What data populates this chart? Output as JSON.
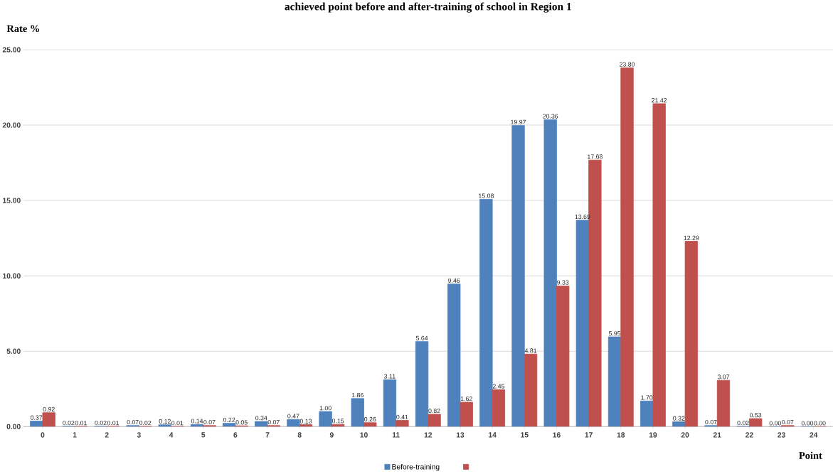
{
  "chart_data": {
    "type": "bar",
    "title": "achieved point before and after-training of school in Region 1",
    "xlabel": "Point",
    "ylabel": "Rate %",
    "categories": [
      "0",
      "1",
      "2",
      "3",
      "4",
      "5",
      "6",
      "7",
      "8",
      "9",
      "10",
      "11",
      "12",
      "13",
      "14",
      "15",
      "16",
      "17",
      "18",
      "19",
      "20",
      "21",
      "22",
      "23",
      "24"
    ],
    "series": [
      {
        "name": "Before-training",
        "color": "#4f81bd",
        "values": [
          0.37,
          0.02,
          0.02,
          0.07,
          0.12,
          0.14,
          0.22,
          0.34,
          0.47,
          1.0,
          1.86,
          3.11,
          5.64,
          9.46,
          15.08,
          19.97,
          20.36,
          13.69,
          5.95,
          1.7,
          0.32,
          0.07,
          0.02,
          0.0,
          0.0
        ],
        "value_labels": [
          "0.37",
          "0.02",
          "0.02",
          "0.07",
          "0.12",
          "0.14",
          "0.22",
          "0.34",
          "0.47",
          "1.00",
          "1.86",
          "3.11",
          "5.64",
          "9.46",
          "15.08",
          "19.97",
          "20.36",
          "13.69",
          "5.95",
          "1.70",
          "0.32",
          "0.07",
          "0.02",
          "0.00",
          "0.00"
        ]
      },
      {
        "color": "#c0504d",
        "values": [
          0.92,
          0.01,
          0.01,
          0.02,
          0.01,
          0.07,
          0.05,
          0.07,
          0.13,
          0.15,
          0.26,
          0.41,
          0.82,
          1.62,
          2.45,
          4.81,
          9.33,
          17.68,
          23.8,
          21.42,
          12.29,
          3.07,
          0.53,
          0.07,
          0.0
        ],
        "value_labels": [
          "0.92",
          "0.01",
          "0.01",
          "0.02",
          "0.01",
          "0.07",
          "0.05",
          "0.07",
          "0.13",
          "0.15",
          "0.26",
          "0.41",
          "0.82",
          "1.62",
          "2.45",
          "4.81",
          "9.33",
          "17.68",
          "23.80",
          "21.42",
          "12.29",
          "3.07",
          "0.53",
          "0.07",
          "0.00"
        ]
      }
    ],
    "ylim": [
      0,
      25
    ],
    "yticks": [
      {
        "value": 0,
        "label": "0.00"
      },
      {
        "value": 5,
        "label": "5.00"
      },
      {
        "value": 10,
        "label": "10.00"
      },
      {
        "value": 15,
        "label": "15.00"
      },
      {
        "value": 20,
        "label": "20.00"
      },
      {
        "value": 25,
        "label": "25.00"
      }
    ],
    "grid": "y",
    "legend": "bottom"
  }
}
